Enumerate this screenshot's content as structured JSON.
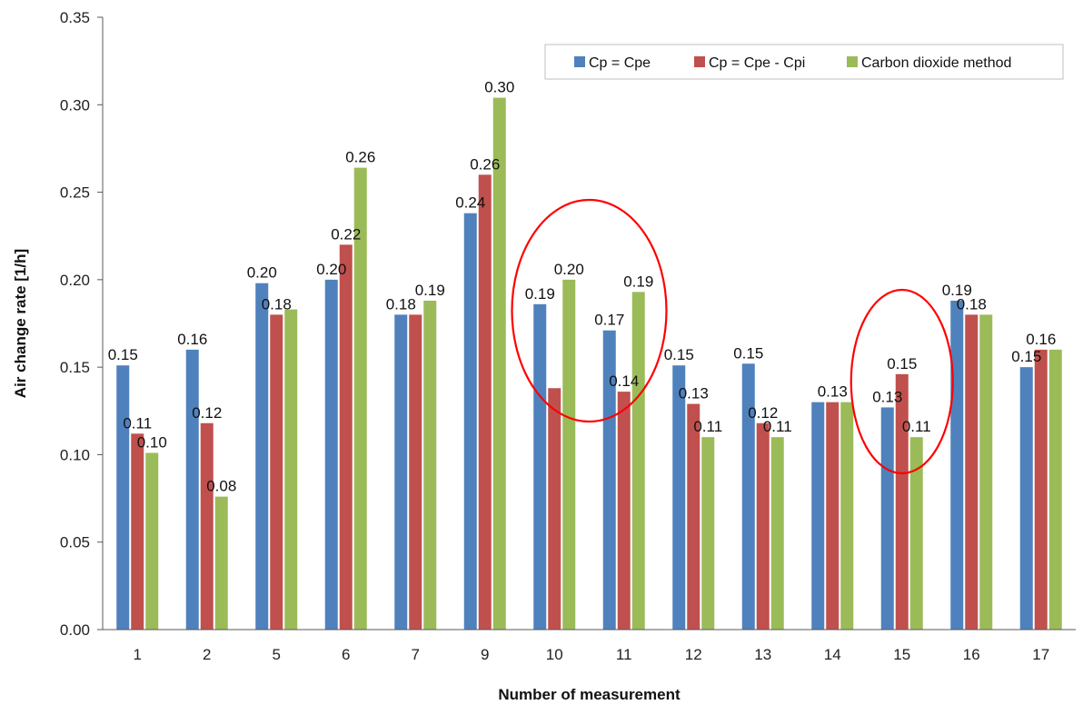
{
  "chart_data": {
    "type": "bar",
    "xlabel": "Number of measurement",
    "ylabel": "Air change rate   [1/h]",
    "ylim": [
      0,
      0.35
    ],
    "yticks": [
      "0.00",
      "0.05",
      "0.10",
      "0.15",
      "0.20",
      "0.25",
      "0.30",
      "0.35"
    ],
    "grid": false,
    "legend_position": "top-right",
    "categories": [
      "1",
      "2",
      "5",
      "6",
      "7",
      "9",
      "10",
      "11",
      "12",
      "13",
      "14",
      "15",
      "16",
      "17"
    ],
    "series": [
      {
        "name": "Cp = Cpe",
        "color": "#4F81BD",
        "values": [
          0.151,
          0.16,
          0.198,
          0.2,
          0.18,
          0.238,
          0.186,
          0.171,
          0.151,
          0.152,
          0.13,
          0.127,
          0.188,
          0.15
        ],
        "labels": [
          "0.15",
          "0.16",
          "0.20",
          "0.20",
          "0.18",
          "0.24",
          "0.19",
          "0.17",
          "0.15",
          "0.15",
          "",
          "0.13",
          "0.19",
          "0.15"
        ]
      },
      {
        "name": "Cp = Cpe - Cpi",
        "color": "#C0504D",
        "values": [
          0.112,
          0.118,
          0.18,
          0.22,
          0.18,
          0.26,
          0.138,
          0.136,
          0.129,
          0.118,
          0.13,
          0.146,
          0.18,
          0.16
        ],
        "labels": [
          "0.11",
          "0.12",
          "0.18",
          "0.22",
          "",
          "0.26",
          "",
          "0.14",
          "0.13",
          "0.12",
          "0.13",
          "0.15",
          "0.18",
          "0.16"
        ]
      },
      {
        "name": "Carbon dioxide method",
        "color": "#9BBB59",
        "values": [
          0.101,
          0.076,
          0.183,
          0.264,
          0.188,
          0.304,
          0.2,
          0.193,
          0.11,
          0.11,
          0.13,
          0.11,
          0.18,
          0.16
        ],
        "labels": [
          "0.10",
          "0.08",
          "",
          "0.26",
          "0.19",
          "0.30",
          "0.20",
          "0.19",
          "0.11",
          "0.11",
          "",
          "0.11",
          "",
          ""
        ]
      }
    ],
    "annotations": [
      {
        "shape": "ellipse",
        "color": "#FF0000",
        "around_categories": [
          "10",
          "11"
        ]
      },
      {
        "shape": "ellipse",
        "color": "#FF0000",
        "around_categories": [
          "15"
        ]
      }
    ]
  }
}
